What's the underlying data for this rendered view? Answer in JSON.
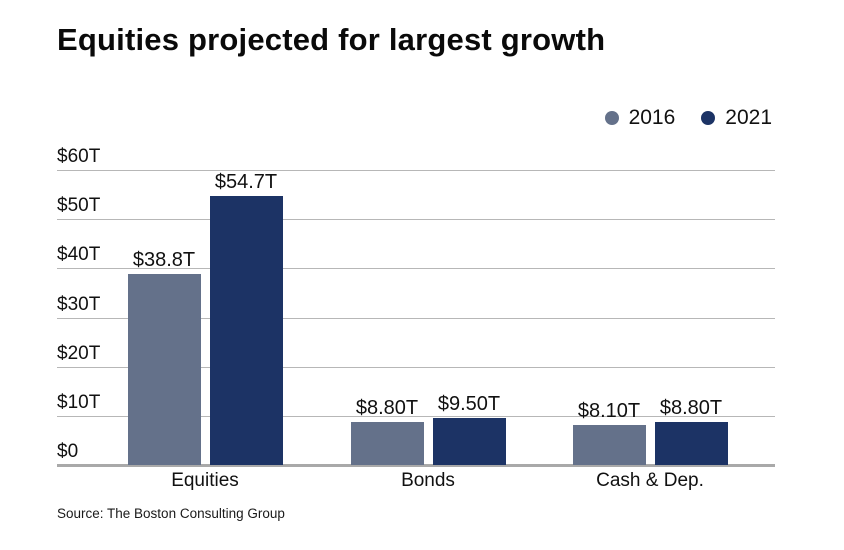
{
  "title": "Equities projected for largest growth",
  "source": "Source: The Boston Consulting Group",
  "legend": [
    {
      "label": "2016",
      "color": "#64718a"
    },
    {
      "label": "2021",
      "color": "#1c3365"
    }
  ],
  "colors": {
    "background": "#ffffff",
    "grid": "#b7b7b7",
    "axis_baseline": "#a9a9a9",
    "text": "#111111",
    "series_2016": "#64718a",
    "series_2021": "#1c3365"
  },
  "chart_data": {
    "type": "bar",
    "title": "Equities projected for largest growth",
    "categories": [
      "Equities",
      "Bonds",
      "Cash & Dep."
    ],
    "series": [
      {
        "name": "2016",
        "color": "#64718a",
        "values": [
          38.8,
          8.8,
          8.1
        ],
        "labels": [
          "$38.8T",
          "$8.80T",
          "$8.10T"
        ]
      },
      {
        "name": "2021",
        "color": "#1c3365",
        "values": [
          54.7,
          9.5,
          8.8
        ],
        "labels": [
          "$54.7T",
          "$9.50T",
          "$8.80T"
        ]
      }
    ],
    "xlabel": "",
    "ylabel": "",
    "unit": "trillions USD",
    "ylim": [
      0,
      60
    ],
    "y_tick_values": [
      60,
      50,
      40,
      30,
      20,
      10,
      0
    ],
    "y_tick_labels": [
      "$60T",
      "$50T",
      "$40T",
      "$30T",
      "$20T",
      "$10T",
      "$0"
    ],
    "grid": true,
    "legend_position": "top-right",
    "source": "Source: The Boston Consulting Group"
  }
}
